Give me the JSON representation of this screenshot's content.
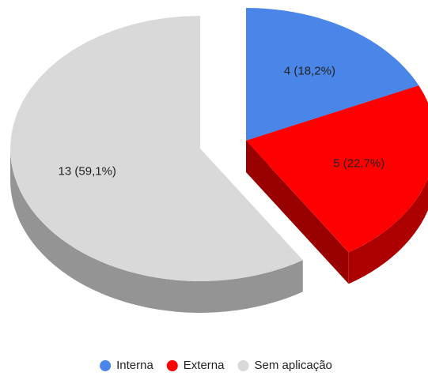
{
  "chart_data": {
    "type": "pie",
    "categories": [
      "Interna",
      "Externa",
      "Sem aplicação"
    ],
    "values": [
      4,
      5,
      13
    ],
    "value_labels": [
      "4 (18,2%)",
      "5 (22,7%)",
      "13 (59,1%)"
    ],
    "colors": [
      "#4a86e8",
      "#ff0000",
      "#d9d9d9"
    ],
    "legend": "bottom"
  }
}
